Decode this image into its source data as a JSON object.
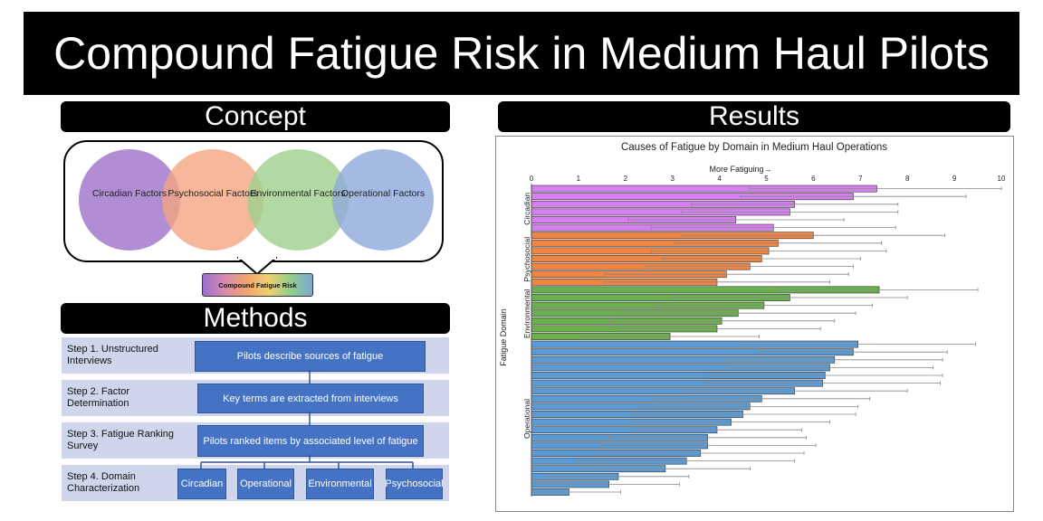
{
  "title": "Compound Fatigue Risk in Medium Haul Pilots",
  "concept": {
    "header": "Concept",
    "factors": [
      {
        "label": "Circadian Factors",
        "color": "#9e72c9"
      },
      {
        "label": "Psychosocial Factors",
        "color": "#f4a582"
      },
      {
        "label": "Environmental Factors",
        "color": "#9fd08c"
      },
      {
        "label": "Operational Factors",
        "color": "#8ea9db"
      }
    ],
    "result_label": "Compound Fatigue Risk"
  },
  "methods": {
    "header": "Methods",
    "steps": [
      {
        "label": "Step 1. Unstructured Interviews",
        "box": "Pilots describe sources of fatigue"
      },
      {
        "label": "Step 2. Factor Determination",
        "box": "Key terms are extracted from interviews"
      },
      {
        "label": "Step 3. Fatigue Ranking Survey",
        "box": "Pilots ranked items by associated level of fatigue"
      },
      {
        "label": "Step 4. Domain Characterization",
        "domains": [
          "Circadian",
          "Operational",
          "Environmental",
          "Psychosocial"
        ]
      }
    ]
  },
  "results": {
    "header": "Results"
  },
  "chart_data": {
    "type": "bar",
    "orientation": "horizontal",
    "title": "Causes of Fatigue by Domain in Medium Haul Operations",
    "xlabel": "More Fatiguing→",
    "ylabel": "Fatigue Domain",
    "xlim": [
      0,
      10
    ],
    "xticks": [
      0,
      1,
      2,
      3,
      4,
      5,
      6,
      7,
      8,
      9,
      10
    ],
    "error_bars": true,
    "groups": [
      {
        "name": "Circadian",
        "color": "#d67ff0",
        "values": [
          7.35,
          6.85,
          5.6,
          5.5,
          4.35,
          5.15
        ],
        "errors": [
          2.7,
          2.4,
          2.2,
          2.3,
          2.3,
          2.6
        ]
      },
      {
        "name": "Psychosocial",
        "color": "#f08541",
        "values": [
          6.0,
          5.25,
          5.05,
          4.9,
          4.65,
          4.15,
          3.95
        ],
        "errors": [
          2.8,
          2.2,
          2.5,
          2.1,
          2.2,
          2.6,
          2.4
        ]
      },
      {
        "name": "Environmental",
        "color": "#6ab04c",
        "values": [
          7.4,
          5.5,
          4.95,
          4.4,
          4.05,
          3.95,
          2.95
        ],
        "errors": [
          2.1,
          2.5,
          2.3,
          2.5,
          2.4,
          2.2,
          1.9
        ]
      },
      {
        "name": "Operational",
        "color": "#5b9bd5",
        "values": [
          6.95,
          6.85,
          6.45,
          6.35,
          6.25,
          6.2,
          5.6,
          4.9,
          4.65,
          4.5,
          4.25,
          3.95,
          3.75,
          3.75,
          3.6,
          3.3,
          2.85,
          1.85,
          1.65,
          0.8
        ],
        "errors": [
          2.5,
          2.0,
          2.3,
          2.2,
          2.5,
          2.5,
          2.4,
          2.3,
          2.3,
          2.4,
          2.1,
          1.8,
          2.1,
          2.3,
          2.2,
          2.3,
          1.8,
          1.5,
          1.5,
          1.1
        ]
      }
    ]
  }
}
